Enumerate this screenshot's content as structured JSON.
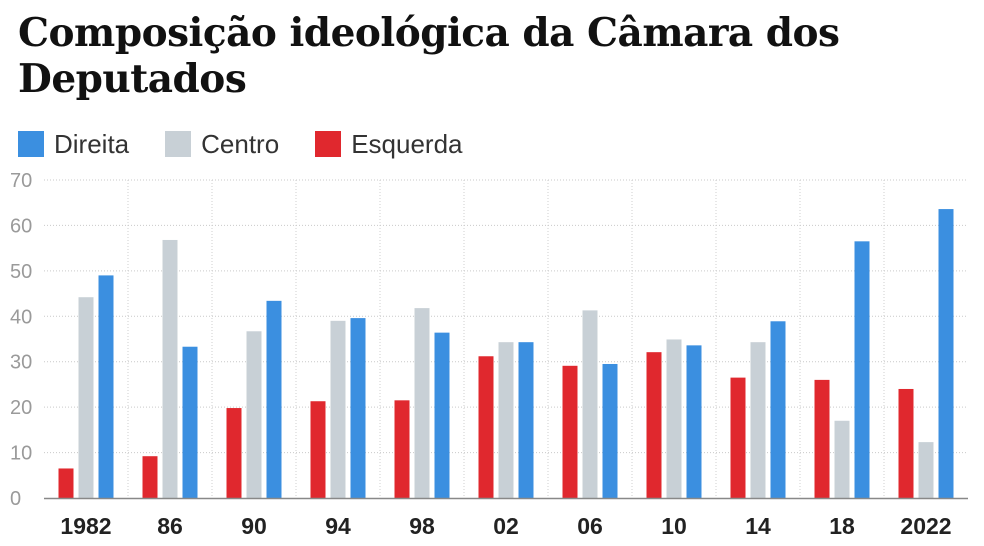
{
  "title": "Composição ideológica da Câmara dos Deputados",
  "colors": {
    "direita": "#3b8fe0",
    "centro": "#c8d0d6",
    "esquerda": "#e0282e"
  },
  "legend": [
    {
      "label": "Direita",
      "color": "#3b8fe0"
    },
    {
      "label": "Centro",
      "color": "#c8d0d6"
    },
    {
      "label": "Esquerda",
      "color": "#e0282e"
    }
  ],
  "chart_data": {
    "type": "bar",
    "title": "Composição ideológica da Câmara dos Deputados",
    "xlabel": "",
    "ylabel": "",
    "ylim": [
      0,
      70
    ],
    "yticks": [
      0,
      10,
      20,
      30,
      40,
      50,
      60,
      70
    ],
    "grid": true,
    "legend_position": "top-left",
    "categories": [
      "1982",
      "86",
      "90",
      "94",
      "98",
      "02",
      "06",
      "10",
      "14",
      "18",
      "2022"
    ],
    "series": [
      {
        "name": "Esquerda",
        "color": "#e0282e",
        "values": [
          6.5,
          9.2,
          19.8,
          21.3,
          21.5,
          31.2,
          29.1,
          32.1,
          26.5,
          26.0,
          24.0
        ]
      },
      {
        "name": "Centro",
        "color": "#c8d0d6",
        "values": [
          44.2,
          56.8,
          36.7,
          39.0,
          41.8,
          34.3,
          41.3,
          34.9,
          34.3,
          17.0,
          12.3
        ]
      },
      {
        "name": "Direita",
        "color": "#3b8fe0",
        "values": [
          49.0,
          33.3,
          43.4,
          39.6,
          36.4,
          34.3,
          29.5,
          33.6,
          38.9,
          56.5,
          63.6
        ]
      }
    ]
  }
}
